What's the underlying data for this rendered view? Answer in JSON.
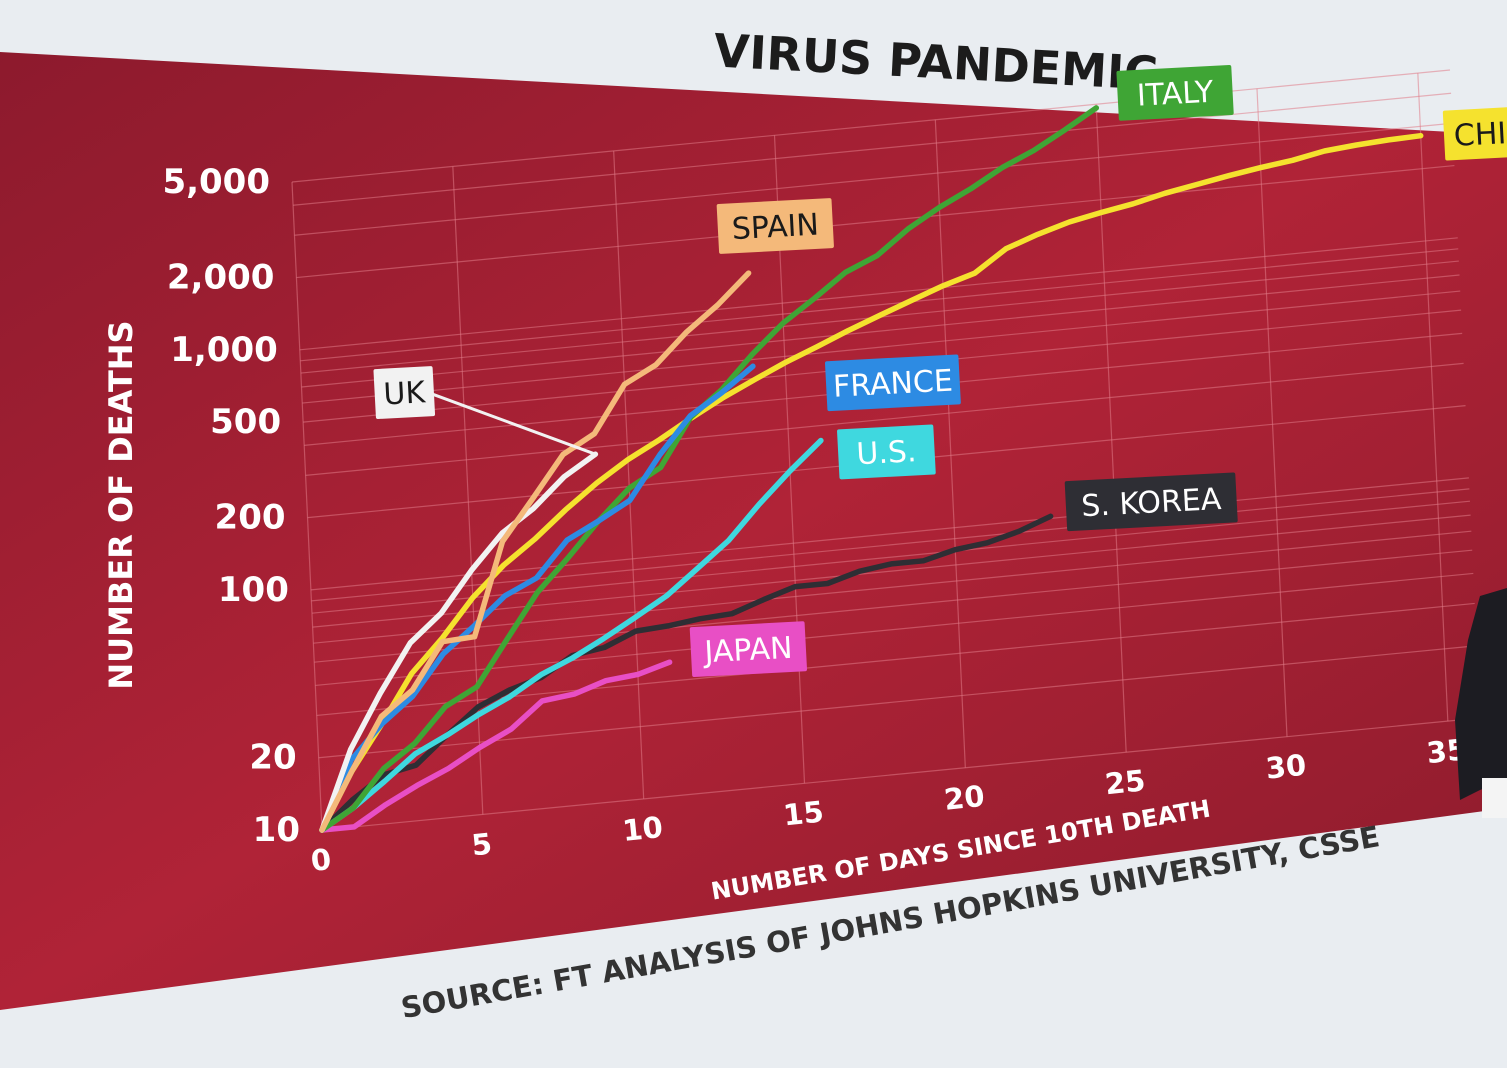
{
  "title": "VIRUS PANDEMIC",
  "source": "SOURCE: FT ANALYSIS OF JOHNS HOPKINS UNIVERSITY, CSSE",
  "colors": {
    "panel": "#9e1f33",
    "panel_light": "#c42a3d",
    "grid": "#e07a86",
    "text": "#ffffff"
  },
  "chart_data": {
    "type": "line",
    "xlabel": "NUMBER OF DAYS SINCE 10TH DEATH",
    "ylabel": "NUMBER OF DEATHS",
    "x_scale": "linear",
    "y_scale": "log",
    "xlim": [
      0,
      36
    ],
    "ylim": [
      10,
      5000
    ],
    "x_ticks": [
      0,
      5,
      10,
      15,
      20,
      25,
      30,
      35
    ],
    "x_tick_labels": [
      "0",
      "5",
      "10",
      "15",
      "20",
      "25",
      "30",
      "35"
    ],
    "y_ticks": [
      10,
      20,
      100,
      200,
      500,
      1000,
      2000,
      5000
    ],
    "y_tick_labels": [
      "10",
      "20",
      "100",
      "200",
      "500",
      "1,000",
      "2,000",
      "5,000"
    ],
    "grid": true,
    "series": [
      {
        "name": "ITALY",
        "color": "#3fa535",
        "label_color": "#ffffff",
        "x": [
          0,
          1,
          2,
          3,
          4,
          5,
          6,
          7,
          8,
          9,
          10,
          11,
          12,
          13,
          14,
          15,
          16,
          17,
          18,
          19,
          20,
          21,
          22,
          23,
          24,
          25
        ],
        "y": [
          10,
          12,
          17,
          21,
          29,
          34,
          52,
          79,
          107,
          148,
          197,
          233,
          366,
          463,
          631,
          827,
          1016,
          1266,
          1441,
          1809,
          2158,
          2503,
          2978,
          3405,
          4032,
          4825
        ]
      },
      {
        "name": "CHINA",
        "color": "#f5e22e",
        "label_color": "#1a1a1a",
        "x": [
          0,
          1,
          2,
          3,
          4,
          5,
          6,
          7,
          8,
          9,
          10,
          11,
          12,
          13,
          14,
          15,
          16,
          17,
          18,
          19,
          20,
          21,
          22,
          23,
          24,
          25,
          26,
          27,
          28,
          29,
          30,
          31,
          32,
          33,
          34,
          35
        ],
        "y": [
          10,
          17,
          26,
          41,
          56,
          80,
          106,
          132,
          170,
          213,
          259,
          304,
          362,
          426,
          492,
          565,
          638,
          724,
          813,
          910,
          1017,
          1114,
          1367,
          1523,
          1665,
          1770,
          1868,
          2004,
          2118,
          2236,
          2345,
          2442,
          2592,
          2663,
          2715,
          2744
        ]
      },
      {
        "name": "SPAIN",
        "color": "#f4b97a",
        "label_color": "#1a1a1a",
        "x": [
          0,
          1,
          2,
          3,
          4,
          5,
          6,
          7,
          8,
          9,
          10,
          11,
          12,
          13,
          14
        ],
        "y": [
          10,
          17,
          28,
          35,
          54,
          55,
          133,
          195,
          289,
          342,
          533,
          623,
          830,
          1043,
          1375
        ]
      },
      {
        "name": "FRANCE",
        "color": "#2d8be3",
        "label_color": "#ffffff",
        "x": [
          0,
          1,
          2,
          3,
          4,
          5,
          6,
          7,
          8,
          9,
          10,
          11,
          12,
          13,
          14
        ],
        "y": [
          10,
          19,
          26,
          33,
          48,
          61,
          79,
          91,
          127,
          148,
          175,
          264,
          372,
          450,
          562
        ]
      },
      {
        "name": "UK",
        "color": "#f2f2f2",
        "label_color": "#1a1a1a",
        "x": [
          0,
          1,
          2,
          3,
          4,
          5,
          6,
          7,
          8,
          9
        ],
        "y": [
          10,
          21,
          35,
          55,
          71,
          104,
          144,
          177,
          233,
          281
        ]
      },
      {
        "name": "U.S.",
        "color": "#3fd8df",
        "label_color": "#ffffff",
        "x": [
          0,
          1,
          2,
          3,
          4,
          5,
          6,
          7,
          8,
          9,
          10,
          11,
          12,
          13,
          14,
          15,
          16
        ],
        "y": [
          10,
          12,
          15,
          19,
          22,
          26,
          30,
          36,
          41,
          48,
          57,
          68,
          86,
          109,
          150,
          200,
          260
        ]
      },
      {
        "name": "S. KOREA",
        "color": "#2e2e34",
        "label_color": "#ffffff",
        "x": [
          0,
          1,
          2,
          3,
          4,
          5,
          6,
          7,
          8,
          9,
          10,
          11,
          12,
          13,
          14,
          15,
          16,
          17,
          18,
          19,
          20,
          21,
          22,
          23
        ],
        "y": [
          10,
          13,
          16,
          17,
          22,
          28,
          32,
          35,
          42,
          44,
          50,
          51,
          53,
          54,
          60,
          66,
          66,
          72,
          75,
          75,
          81,
          84,
          91,
          102
        ]
      },
      {
        "name": "JAPAN",
        "color": "#e84fc5",
        "label_color": "#ffffff",
        "x": [
          0,
          1,
          2,
          3,
          4,
          5,
          6,
          7,
          8,
          9,
          10,
          11
        ],
        "y": [
          10,
          10,
          12,
          14,
          16,
          19,
          22,
          28,
          29,
          32,
          33,
          36
        ]
      }
    ]
  }
}
